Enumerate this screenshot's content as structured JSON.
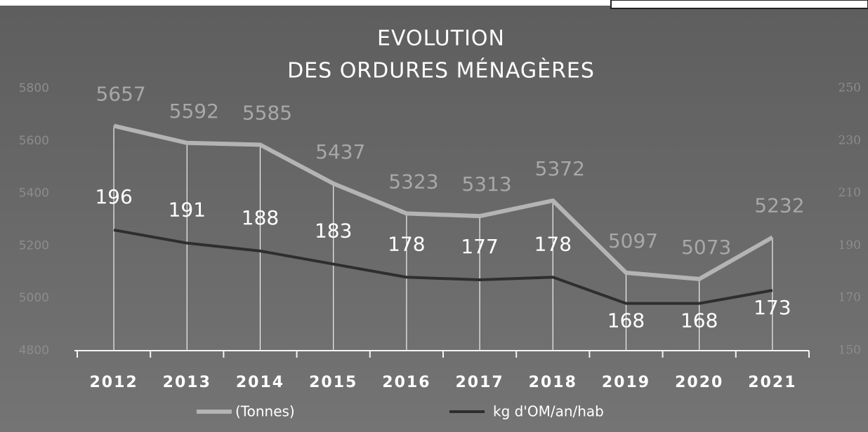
{
  "chart_data": {
    "type": "line",
    "title": [
      "EVOLUTION",
      "DES ORDURES MÉNAGÈRES"
    ],
    "categories": [
      "2012",
      "2013",
      "2014",
      "2015",
      "2016",
      "2017",
      "2018",
      "2019",
      "2020",
      "2021"
    ],
    "series": [
      {
        "name": "(Tonnes)",
        "color": "#b4b4b4",
        "values": [
          5657,
          5592,
          5585,
          5437,
          5323,
          5313,
          5372,
          5097,
          5073,
          5232
        ]
      },
      {
        "name": "kg d'OM/an/hab",
        "color": "#2e2e2e",
        "axis": "y2",
        "values": [
          196,
          191,
          188,
          183,
          178,
          177,
          178,
          168,
          168,
          173
        ]
      }
    ],
    "ylim": [
      4800,
      5800
    ],
    "yticks": [
      4800,
      5000,
      5200,
      5400,
      5600,
      5800
    ],
    "y2lim": [
      150,
      250
    ],
    "y2ticks": [
      150,
      170,
      190,
      210,
      230,
      250
    ],
    "drop_lines": true
  }
}
